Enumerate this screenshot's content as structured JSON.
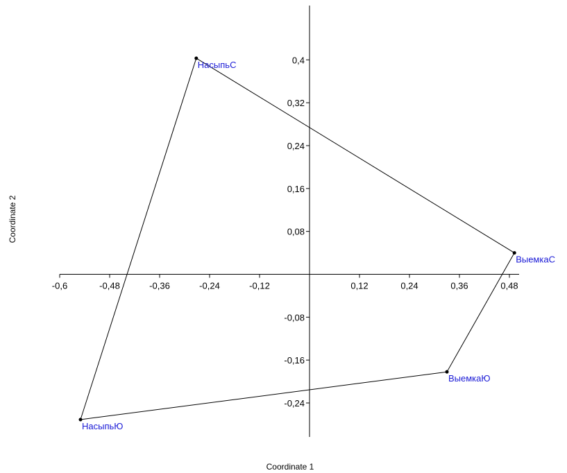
{
  "chart_data": {
    "type": "scatter",
    "title": "",
    "xlabel": "Coordinate 1",
    "ylabel": "Coordinate 2",
    "xlim": [
      -0.6,
      0.5
    ],
    "ylim": [
      -0.3,
      0.5
    ],
    "x_ticks": [
      {
        "value": -0.6,
        "label": "-0,6"
      },
      {
        "value": -0.48,
        "label": "-0,48"
      },
      {
        "value": -0.36,
        "label": "-0,36"
      },
      {
        "value": -0.24,
        "label": "-0,24"
      },
      {
        "value": -0.12,
        "label": "-0,12"
      },
      {
        "value": 0.12,
        "label": "0,12"
      },
      {
        "value": 0.24,
        "label": "0,24"
      },
      {
        "value": 0.36,
        "label": "0,36"
      },
      {
        "value": 0.48,
        "label": "0,48"
      }
    ],
    "y_ticks": [
      {
        "value": 0.4,
        "label": "0,4"
      },
      {
        "value": 0.32,
        "label": "0,32"
      },
      {
        "value": 0.24,
        "label": "0,24"
      },
      {
        "value": 0.16,
        "label": "0,16"
      },
      {
        "value": 0.08,
        "label": "0,08"
      },
      {
        "value": -0.08,
        "label": "-0,08"
      },
      {
        "value": -0.16,
        "label": "-0,16"
      },
      {
        "value": -0.24,
        "label": "-0,24"
      }
    ],
    "points": [
      {
        "label": "НасыпьС",
        "x": -0.272,
        "y": 0.403
      },
      {
        "label": "ВыемкаС",
        "x": 0.492,
        "y": 0.04
      },
      {
        "label": "ВыемкаЮ",
        "x": 0.33,
        "y": -0.182
      },
      {
        "label": "НасыпьЮ",
        "x": -0.55,
        "y": -0.271
      }
    ],
    "hull": true,
    "colors": {
      "point": "#000000",
      "point_label": "#1a1ad6",
      "line": "#000000",
      "axis": "#000000"
    }
  }
}
